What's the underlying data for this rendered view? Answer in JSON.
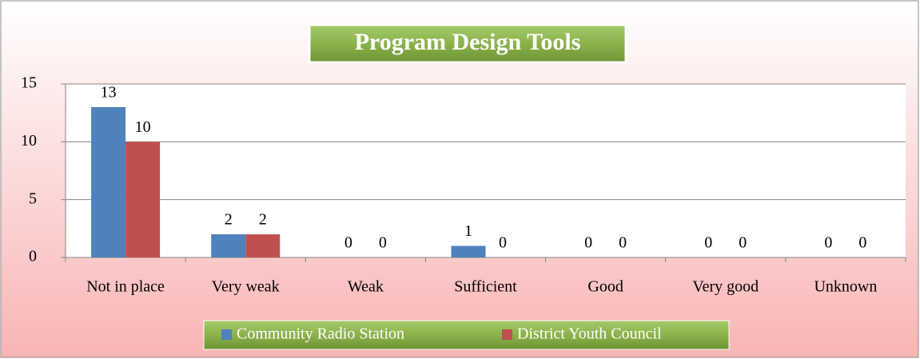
{
  "chart_data": {
    "type": "bar",
    "title": "Program Design Tools",
    "categories": [
      "Not in place",
      "Very weak",
      "Weak",
      "Sufficient",
      "Good",
      "Very good",
      "Unknown"
    ],
    "series": [
      {
        "name": "Community Radio Station",
        "color": "#4f81bd",
        "values": [
          13,
          2,
          0,
          1,
          0,
          0,
          0
        ]
      },
      {
        "name": "District Youth Council",
        "color": "#c0504d",
        "values": [
          10,
          2,
          0,
          0,
          0,
          0,
          0
        ]
      }
    ],
    "ylim": [
      0,
      15
    ],
    "yticks": [
      0,
      5,
      10,
      15
    ],
    "grid": true,
    "legend": "bottom"
  }
}
